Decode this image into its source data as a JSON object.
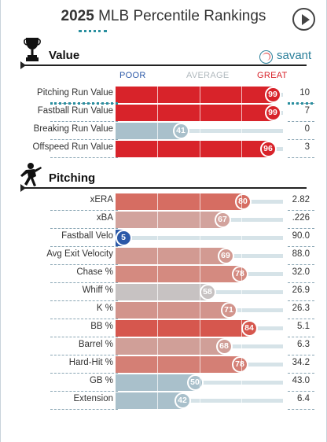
{
  "header": {
    "title_year": "2025",
    "title_rest": " MLB Percentile Rankings"
  },
  "brand": {
    "label": "savant"
  },
  "scale": {
    "poor": "POOR",
    "average": "AVERAGE",
    "great": "GREAT"
  },
  "sections": {
    "value": {
      "title": "Value"
    },
    "pitching": {
      "title": "Pitching"
    }
  },
  "value_rows": [
    {
      "label": "Pitching Run Value",
      "percentile": 99,
      "value": "10",
      "color": "#d8232a"
    },
    {
      "label": "Fastball Run Value",
      "percentile": 99,
      "value": "7",
      "color": "#d8232a"
    },
    {
      "label": "Breaking Run Value",
      "percentile": 41,
      "value": "0",
      "color": "#a9c0cb"
    },
    {
      "label": "Offspeed Run Value",
      "percentile": 96,
      "value": "3",
      "color": "#d8232a"
    }
  ],
  "pitching_rows": [
    {
      "label": "xERA",
      "percentile": 80,
      "value": "2.82",
      "color": "#d66d62"
    },
    {
      "label": "xBA",
      "percentile": 67,
      "value": ".226",
      "color": "#d2a39d"
    },
    {
      "label": "Fastball Velo",
      "percentile": 5,
      "value": "90.0",
      "color": "#2c59a8"
    },
    {
      "label": "Avg Exit Velocity",
      "percentile": 69,
      "value": "88.0",
      "color": "#d29a92"
    },
    {
      "label": "Chase %",
      "percentile": 78,
      "value": "32.0",
      "color": "#d48a80"
    },
    {
      "label": "Whiff %",
      "percentile": 58,
      "value": "26.9",
      "color": "#c7c2c2"
    },
    {
      "label": "K %",
      "percentile": 71,
      "value": "26.3",
      "color": "#d2948c"
    },
    {
      "label": "BB %",
      "percentile": 84,
      "value": "5.1",
      "color": "#d6574e"
    },
    {
      "label": "Barrel %",
      "percentile": 68,
      "value": "6.3",
      "color": "#d09f98"
    },
    {
      "label": "Hard-Hit %",
      "percentile": 78,
      "value": "34.2",
      "color": "#d47f75"
    },
    {
      "label": "GB %",
      "percentile": 50,
      "value": "43.0",
      "color": "#a9c0cb"
    },
    {
      "label": "Extension",
      "percentile": 42,
      "value": "6.4",
      "color": "#a9c0cb"
    }
  ],
  "colors": {
    "teal": "#2a8f9f",
    "poor": "#2c59a8",
    "average": "#b0b8bd",
    "great": "#d8232a"
  }
}
